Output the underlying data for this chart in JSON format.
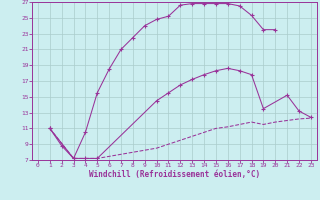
{
  "background_color": "#cceef0",
  "grid_color": "#aacccc",
  "line_color": "#993399",
  "xlabel": "Windchill (Refroidissement éolien,°C)",
  "xlim": [
    -0.5,
    23.5
  ],
  "ylim": [
    7,
    27
  ],
  "xticks": [
    0,
    1,
    2,
    3,
    4,
    5,
    6,
    7,
    8,
    9,
    10,
    11,
    12,
    13,
    14,
    15,
    16,
    17,
    18,
    19,
    20,
    21,
    22,
    23
  ],
  "yticks": [
    7,
    9,
    11,
    13,
    15,
    17,
    19,
    21,
    23,
    25,
    27
  ],
  "line1_x": [
    1,
    2,
    3,
    4,
    5,
    6,
    7,
    8,
    9,
    10,
    11,
    12,
    13,
    14,
    15,
    16,
    17,
    18,
    19,
    20
  ],
  "line1_y": [
    11,
    8.8,
    7.2,
    10.5,
    15.5,
    18.5,
    21,
    22.5,
    24,
    24.8,
    25.2,
    26.6,
    26.8,
    26.8,
    26.8,
    26.8,
    26.5,
    25.3,
    23.5,
    23.5
  ],
  "line2_x": [
    1,
    3,
    4,
    5,
    10,
    11,
    12,
    13,
    14,
    15,
    16,
    17,
    18,
    19,
    21,
    22,
    23
  ],
  "line2_y": [
    11,
    7.2,
    7.2,
    7.2,
    14.5,
    15.5,
    16.5,
    17.2,
    17.8,
    18.3,
    18.6,
    18.3,
    17.8,
    13.5,
    15.2,
    13.2,
    12.4
  ],
  "line3_x": [
    1,
    3,
    4,
    5,
    10,
    11,
    12,
    13,
    14,
    15,
    16,
    17,
    18,
    19,
    20,
    21,
    22,
    23
  ],
  "line3_y": [
    11,
    7.2,
    7.2,
    7.2,
    8.5,
    9.0,
    9.5,
    10.0,
    10.5,
    11.0,
    11.2,
    11.5,
    11.8,
    11.5,
    11.8,
    12.0,
    12.2,
    12.3
  ]
}
